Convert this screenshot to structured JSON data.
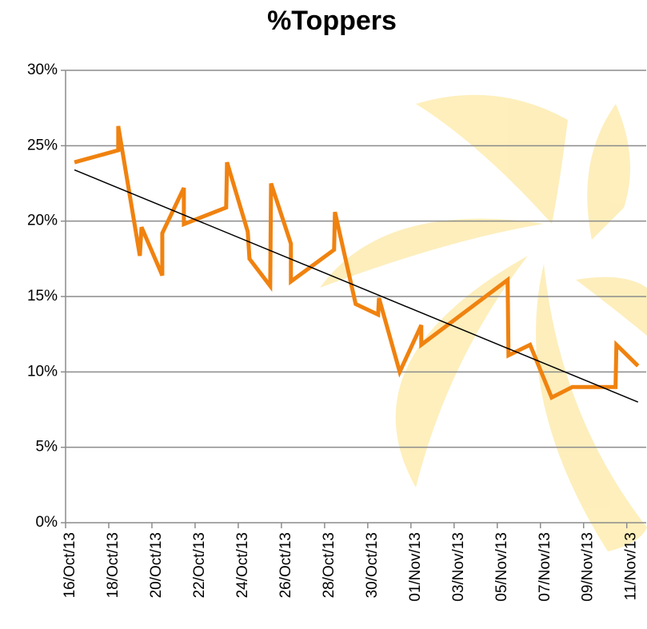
{
  "chart_data": {
    "type": "line",
    "title": "%Toppers",
    "xlim": [
      0,
      26.9
    ],
    "xticks": [
      {
        "value": 0,
        "label": "16/Oct/13"
      },
      {
        "value": 2,
        "label": "18/Oct/13"
      },
      {
        "value": 4,
        "label": "20/Oct/13"
      },
      {
        "value": 6,
        "label": "22/Oct/13"
      },
      {
        "value": 8,
        "label": "24/Oct/13"
      },
      {
        "value": 10,
        "label": "26/Oct/13"
      },
      {
        "value": 12,
        "label": "28/Oct/13"
      },
      {
        "value": 14,
        "label": "30/Oct/13"
      },
      {
        "value": 16,
        "label": "01/Nov/13"
      },
      {
        "value": 18,
        "label": "03/Nov/13"
      },
      {
        "value": 20,
        "label": "05/Nov/13"
      },
      {
        "value": 22,
        "label": "07/Nov/13"
      },
      {
        "value": 24,
        "label": "09/Nov/13"
      },
      {
        "value": 26,
        "label": "11/Nov/13"
      }
    ],
    "ylim": [
      0,
      30
    ],
    "yticks": [
      {
        "value": 0,
        "label": "0%"
      },
      {
        "value": 5,
        "label": "5%"
      },
      {
        "value": 10,
        "label": "10%"
      },
      {
        "value": 15,
        "label": "15%"
      },
      {
        "value": 20,
        "label": "20%"
      },
      {
        "value": 25,
        "label": "25%"
      },
      {
        "value": 30,
        "label": "30%"
      }
    ],
    "grid": true,
    "series": [
      {
        "color": "#f0820f",
        "x": [
          0.41,
          2.44,
          2.44,
          3.44,
          3.52,
          4.48,
          4.48,
          5.48,
          5.48,
          7.44,
          7.48,
          8.44,
          8.52,
          9.48,
          9.52,
          10.44,
          10.44,
          12.44,
          12.48,
          13.44,
          14.48,
          14.52,
          15.48,
          16.48,
          16.48,
          20.48,
          20.52,
          21.52,
          22.52,
          23.48,
          25.48,
          25.52,
          26.52
        ],
        "values": [
          23.9,
          24.7,
          26.3,
          17.7,
          19.6,
          16.4,
          19.2,
          22.2,
          19.8,
          20.9,
          23.9,
          19.3,
          17.5,
          15.7,
          22.5,
          18.5,
          16.0,
          18.1,
          20.6,
          14.5,
          13.8,
          14.9,
          10.0,
          13.1,
          11.8,
          16.1,
          11.1,
          11.8,
          8.3,
          9.0,
          9.0,
          11.8,
          10.4
        ]
      }
    ],
    "trendline": {
      "color": "#000000",
      "x": [
        0.41,
        26.52
      ],
      "values": [
        23.4,
        8.0
      ]
    }
  }
}
